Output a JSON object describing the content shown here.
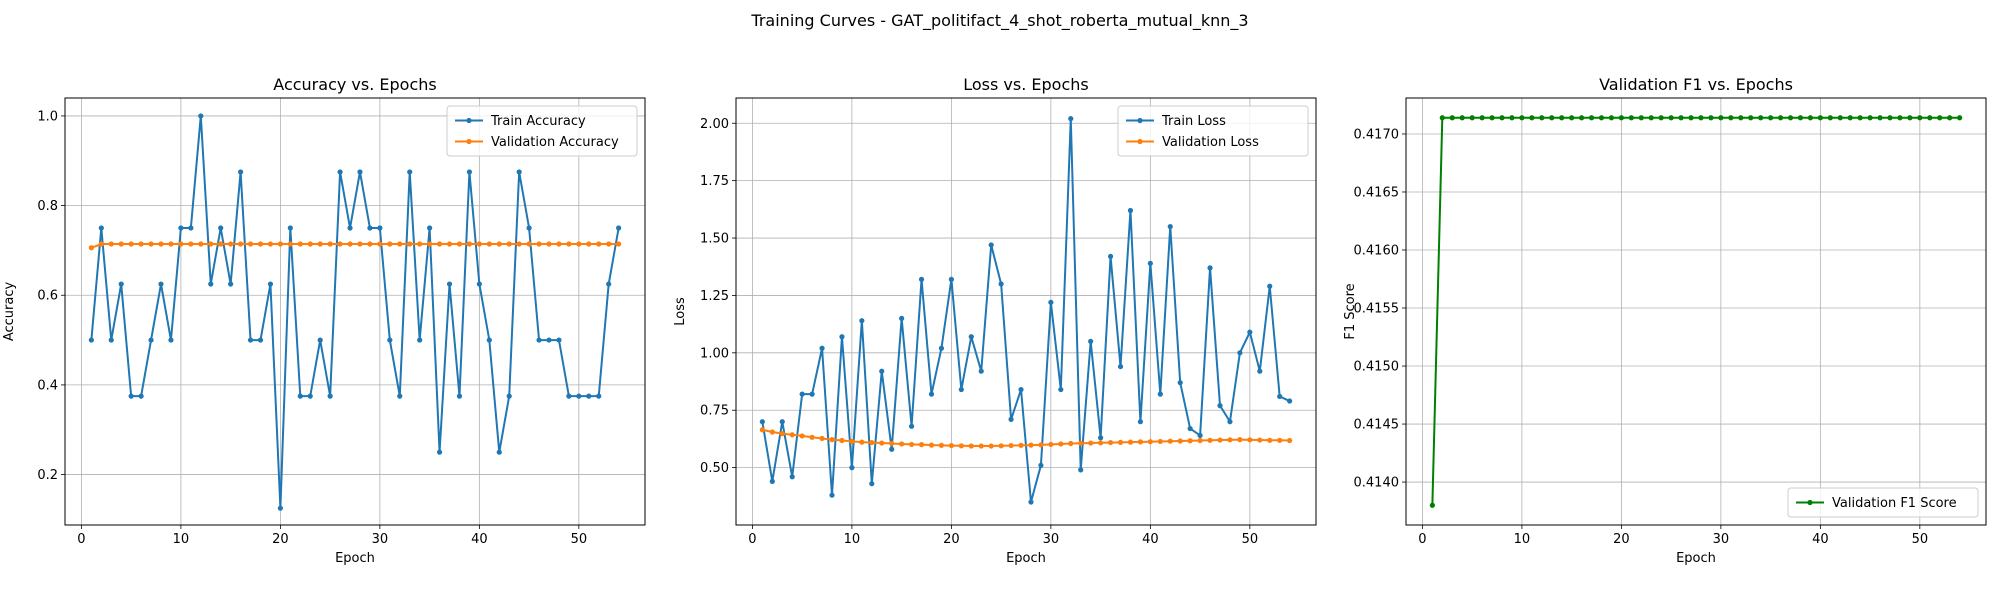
{
  "figure": {
    "suptitle": "Training Curves - GAT_politifact_4_shot_roberta_mutual_knn_3"
  },
  "colors": {
    "blue": "#1f77b4",
    "orange": "#ff7f0e",
    "green": "#008000",
    "grid": "#b0b0b0"
  },
  "chart_data": [
    {
      "type": "line",
      "title": "Accuracy vs. Epochs",
      "xlabel": "Epoch",
      "ylabel": "Accuracy",
      "xlim": [
        -1.65,
        56.65
      ],
      "ylim": [
        0.0875,
        1.04
      ],
      "xticks": [
        0,
        10,
        20,
        30,
        40,
        50
      ],
      "yticks": [
        0.2,
        0.4,
        0.6,
        0.8,
        1.0
      ],
      "ytick_labels": [
        "0.2",
        "0.4",
        "0.6",
        "0.8",
        "1.0"
      ],
      "grid": true,
      "legend": "top-right",
      "series": [
        {
          "name": "Train Accuracy",
          "color": "#1f77b4",
          "values": [
            0.5,
            0.75,
            0.5,
            0.625,
            0.375,
            0.375,
            0.5,
            0.625,
            0.5,
            0.75,
            0.75,
            1.0,
            0.625,
            0.75,
            0.625,
            0.875,
            0.5,
            0.5,
            0.625,
            0.125,
            0.75,
            0.375,
            0.375,
            0.5,
            0.375,
            0.875,
            0.75,
            0.875,
            0.75,
            0.75,
            0.5,
            0.375,
            0.875,
            0.5,
            0.75,
            0.25,
            0.625,
            0.375,
            0.875,
            0.625,
            0.5,
            0.25,
            0.375,
            0.875,
            0.75,
            0.5,
            0.5,
            0.5,
            0.375,
            0.375,
            0.375,
            0.375,
            0.625,
            0.75
          ]
        },
        {
          "name": "Validation Accuracy",
          "color": "#ff7f0e",
          "values": [
            0.7059,
            0.7143,
            0.7143,
            0.7143,
            0.7143,
            0.7143,
            0.7143,
            0.7143,
            0.7143,
            0.7143,
            0.7143,
            0.7143,
            0.7143,
            0.7143,
            0.7143,
            0.7143,
            0.7143,
            0.7143,
            0.7143,
            0.7143,
            0.7143,
            0.7143,
            0.7143,
            0.7143,
            0.7143,
            0.7143,
            0.7143,
            0.7143,
            0.7143,
            0.7143,
            0.7143,
            0.7143,
            0.7143,
            0.7143,
            0.7143,
            0.7143,
            0.7143,
            0.7143,
            0.7143,
            0.7143,
            0.7143,
            0.7143,
            0.7143,
            0.7143,
            0.7143,
            0.7143,
            0.7143,
            0.7143,
            0.7143,
            0.7143,
            0.7143,
            0.7143,
            0.7143,
            0.7143
          ]
        }
      ]
    },
    {
      "type": "line",
      "title": "Loss vs. Epochs",
      "xlabel": "Epoch",
      "ylabel": "Loss",
      "xlim": [
        -1.65,
        56.65
      ],
      "ylim": [
        0.25,
        2.11
      ],
      "xticks": [
        0,
        10,
        20,
        30,
        40,
        50
      ],
      "yticks": [
        0.5,
        0.75,
        1.0,
        1.25,
        1.5,
        1.75,
        2.0
      ],
      "ytick_labels": [
        "0.50",
        "0.75",
        "1.00",
        "1.25",
        "1.50",
        "1.75",
        "2.00"
      ],
      "grid": true,
      "legend": "top-right",
      "series": [
        {
          "name": "Train Loss",
          "color": "#1f77b4",
          "values": [
            0.7,
            0.44,
            0.7,
            0.46,
            0.82,
            0.82,
            1.02,
            0.38,
            1.07,
            0.5,
            1.14,
            0.43,
            0.92,
            0.58,
            1.15,
            0.68,
            1.32,
            0.82,
            1.02,
            1.32,
            0.84,
            1.07,
            0.92,
            1.47,
            1.3,
            0.71,
            0.84,
            0.35,
            0.51,
            1.22,
            0.84,
            2.02,
            0.49,
            1.05,
            0.63,
            1.42,
            0.94,
            1.62,
            0.7,
            1.39,
            0.82,
            1.55,
            0.87,
            0.67,
            0.64,
            1.37,
            0.77,
            0.7,
            1.0,
            1.09,
            0.92,
            1.29,
            0.81,
            0.79
          ]
        },
        {
          "name": "Validation Loss",
          "color": "#ff7f0e",
          "values": [
            0.665,
            0.655,
            0.648,
            0.643,
            0.638,
            0.632,
            0.627,
            0.622,
            0.618,
            0.614,
            0.611,
            0.609,
            0.607,
            0.605,
            0.603,
            0.601,
            0.6,
            0.598,
            0.597,
            0.596,
            0.595,
            0.594,
            0.594,
            0.594,
            0.595,
            0.596,
            0.597,
            0.598,
            0.599,
            0.601,
            0.603,
            0.605,
            0.606,
            0.607,
            0.608,
            0.609,
            0.61,
            0.611,
            0.612,
            0.613,
            0.614,
            0.615,
            0.616,
            0.617,
            0.618,
            0.619,
            0.62,
            0.621,
            0.622,
            0.621,
            0.62,
            0.619,
            0.619,
            0.618
          ]
        }
      ]
    },
    {
      "type": "line",
      "title": "Validation F1 vs. Epochs",
      "xlabel": "Epoch",
      "ylabel": "F1 Score",
      "xlim": [
        -1.65,
        56.65
      ],
      "ylim": [
        0.41363,
        0.41731
      ],
      "xticks": [
        0,
        10,
        20,
        30,
        40,
        50
      ],
      "yticks": [
        0.414,
        0.4145,
        0.415,
        0.4155,
        0.416,
        0.4165,
        0.417
      ],
      "ytick_labels": [
        "0.4140",
        "0.4145",
        "0.4150",
        "0.4155",
        "0.4160",
        "0.4165",
        "0.4170"
      ],
      "grid": true,
      "legend": "lower-right",
      "series": [
        {
          "name": "Validation F1 Score",
          "color": "#008000",
          "values": [
            0.4138,
            0.41714,
            0.41714,
            0.41714,
            0.41714,
            0.41714,
            0.41714,
            0.41714,
            0.41714,
            0.41714,
            0.41714,
            0.41714,
            0.41714,
            0.41714,
            0.41714,
            0.41714,
            0.41714,
            0.41714,
            0.41714,
            0.41714,
            0.41714,
            0.41714,
            0.41714,
            0.41714,
            0.41714,
            0.41714,
            0.41714,
            0.41714,
            0.41714,
            0.41714,
            0.41714,
            0.41714,
            0.41714,
            0.41714,
            0.41714,
            0.41714,
            0.41714,
            0.41714,
            0.41714,
            0.41714,
            0.41714,
            0.41714,
            0.41714,
            0.41714,
            0.41714,
            0.41714,
            0.41714,
            0.41714,
            0.41714,
            0.41714,
            0.41714,
            0.41714,
            0.41714,
            0.41714
          ]
        }
      ]
    }
  ]
}
